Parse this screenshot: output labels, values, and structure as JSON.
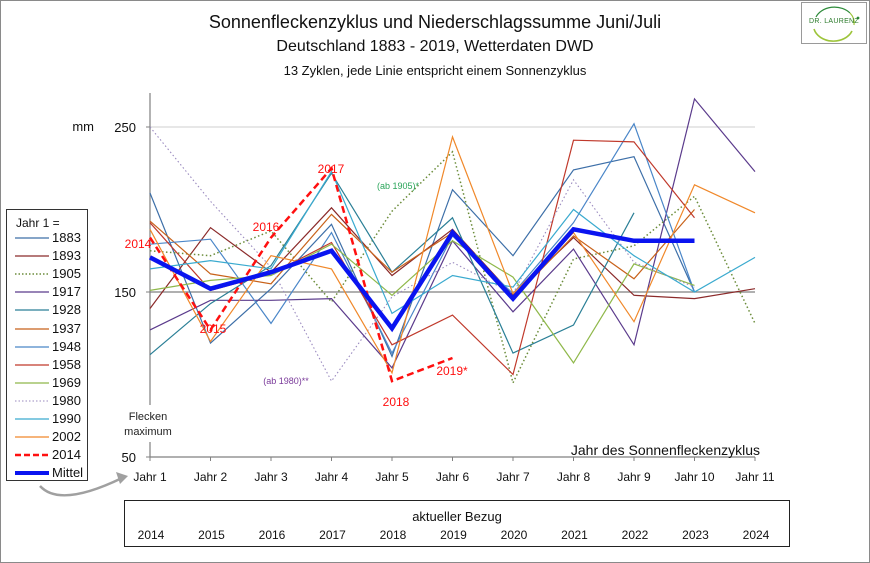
{
  "header": {
    "title": "Sonnenfleckenzyklus und Niederschlagssumme Juni/Juli",
    "subtitle": "Deutschland  1883 - 2019, Wetterdaten  DWD",
    "subtitle2": "13 Zyklen, jede Linie entspricht einem Sonnenzyklus"
  },
  "logo": {
    "text": "DR. LAURENZ",
    "colors": {
      "ring": "#9dc43a",
      "ring_dark": "#2e8b3a"
    }
  },
  "legend": {
    "title": "Jahr 1 =",
    "items": [
      "1883",
      "1893",
      "1905",
      "1917",
      "1928",
      "1937",
      "1948",
      "1958",
      "1969",
      "1980",
      "1990",
      "2002",
      "2014",
      "Mittel"
    ]
  },
  "bezug": {
    "title": "aktueller Bezug",
    "years": [
      "2014",
      "2015",
      "2016",
      "2017",
      "2018",
      "2019",
      "2020",
      "2021",
      "2022",
      "2023",
      "2024"
    ]
  },
  "chart_data": {
    "type": "line",
    "title": "Sonnenfleckenzyklus und Niederschlagssumme Juni/Juli",
    "subtitle": "Deutschland  1883 - 2019, Wetterdaten  DWD",
    "xlabel": "Jahr des Sonnenfleckenzyklus",
    "ylabel": "mm",
    "ylim": [
      50,
      270
    ],
    "yticks": [
      50,
      150,
      250
    ],
    "gridlines": [
      150,
      250
    ],
    "categories": [
      "Jahr 1",
      "Jahr 2",
      "Jahr 3",
      "Jahr 4",
      "Jahr 5",
      "Jahr 6",
      "Jahr 7",
      "Jahr 8",
      "Jahr 9",
      "Jahr 10",
      "Jahr 11"
    ],
    "legend_position": "left",
    "series": [
      {
        "name": "1883",
        "color": "#3d6fa8",
        "dash": "solid",
        "width": 1.2,
        "values": [
          210,
          119,
          152,
          191,
          111,
          212,
          172,
          224,
          232,
          150,
          null
        ]
      },
      {
        "name": "1893",
        "color": "#8b2a2a",
        "dash": "solid",
        "width": 1.2,
        "values": [
          140,
          189,
          162,
          201,
          160,
          188,
          148,
          183,
          148,
          146,
          152
        ]
      },
      {
        "name": "1905",
        "color": "#6b8c3a",
        "dash": "dotted",
        "width": 1.5,
        "values": [
          175,
          172,
          187,
          144,
          199,
          235,
          95,
          170,
          178,
          208,
          131
        ]
      },
      {
        "name": "1917",
        "color": "#5b3b8c",
        "dash": "solid",
        "width": 1.2,
        "values": [
          127,
          145,
          145,
          146,
          104,
          181,
          138,
          176,
          118,
          267,
          223
        ]
      },
      {
        "name": "1928",
        "color": "#2a7f96",
        "dash": "solid",
        "width": 1.2,
        "values": [
          112,
          143,
          166,
          222,
          162,
          195,
          113,
          130,
          198,
          null,
          null
        ]
      },
      {
        "name": "1937",
        "color": "#c8621a",
        "dash": "solid",
        "width": 1.2,
        "values": [
          193,
          161,
          155,
          197,
          162,
          186,
          146,
          184,
          158,
          200,
          null
        ]
      },
      {
        "name": "1948",
        "color": "#4a86c8",
        "dash": "solid",
        "width": 1.2,
        "values": [
          179,
          182,
          131,
          186,
          113,
          184,
          149,
          192,
          252,
          150,
          null
        ]
      },
      {
        "name": "1958",
        "color": "#c0392b",
        "dash": "solid",
        "width": 1.2,
        "values": [
          192,
          151,
          161,
          180,
          118,
          136,
          100,
          242,
          241,
          195,
          null
        ]
      },
      {
        "name": "1969",
        "color": "#8fb84a",
        "dash": "solid",
        "width": 1.2,
        "values": [
          151,
          157,
          160,
          179,
          148,
          181,
          159,
          107,
          167,
          154,
          null
        ]
      },
      {
        "name": "1980",
        "color": "#9a8abf",
        "dash": "dotted",
        "width": 1.1,
        "values": [
          250,
          205,
          165,
          96,
          147,
          168,
          149,
          218,
          168,
          153,
          null
        ]
      },
      {
        "name": "1990",
        "color": "#3aaacf",
        "dash": "solid",
        "width": 1.2,
        "values": [
          164,
          169,
          164,
          223,
          137,
          160,
          153,
          200,
          172,
          150,
          171
        ]
      },
      {
        "name": "2002",
        "color": "#f0882a",
        "dash": "solid",
        "width": 1.2,
        "values": [
          188,
          120,
          172,
          164,
          101,
          244,
          149,
          186,
          132,
          215,
          198
        ]
      },
      {
        "name": "2014",
        "color": "#ff1010",
        "dash": "dashed",
        "width": 2.5,
        "values": [
          183,
          127,
          183,
          225,
          96,
          110,
          null,
          null,
          null,
          null,
          null
        ]
      },
      {
        "name": "Mittel",
        "color": "#0a14f0",
        "dash": "solid",
        "width": 4.5,
        "values": [
          171,
          152,
          162,
          175,
          128,
          186,
          146,
          188,
          181,
          181,
          null
        ]
      }
    ],
    "annotations": [
      {
        "text": "2014",
        "color": "#ff1010",
        "x": "Jahr 1"
      },
      {
        "text": "2015",
        "color": "#ff1010",
        "x": "Jahr 2"
      },
      {
        "text": "2016",
        "color": "#ff1010",
        "x": "Jahr 3"
      },
      {
        "text": "2017",
        "color": "#ff1010",
        "x": "Jahr 4"
      },
      {
        "text": "2018",
        "color": "#ff1010",
        "x": "Jahr 5"
      },
      {
        "text": "2019*",
        "color": "#ff1010",
        "x": "Jahr 6"
      },
      {
        "text": "(ab 1905)*",
        "color": "#2aa55a",
        "x": "Jahr 5"
      },
      {
        "text": "(ab 1980)**",
        "color": "#7a3a9a",
        "x": "Jahr 3"
      }
    ],
    "axis_note": [
      "Flecken",
      "maximum"
    ]
  }
}
